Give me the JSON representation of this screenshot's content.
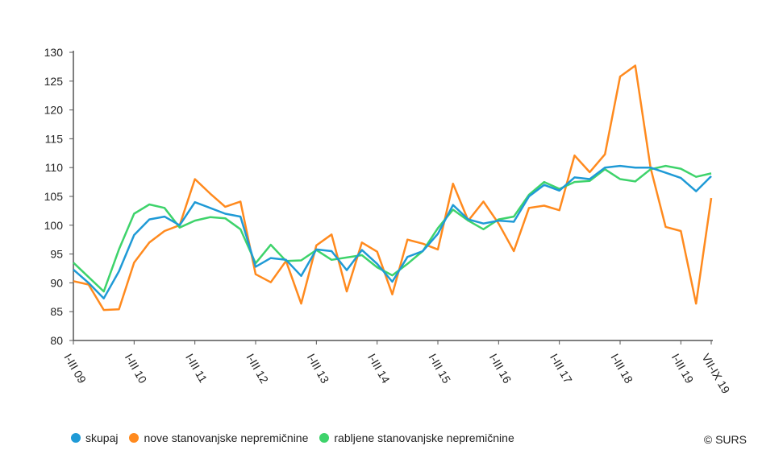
{
  "chart_data": {
    "type": "line",
    "title": "",
    "xlabel": "",
    "ylabel": "",
    "ylim": [
      80,
      130
    ],
    "yticks": [
      80,
      85,
      90,
      95,
      100,
      105,
      110,
      115,
      120,
      125,
      130
    ],
    "grid": false,
    "legend_position": "bottom",
    "x_tick_labels": [
      {
        "index": 0,
        "label": "I-III 09"
      },
      {
        "index": 4,
        "label": "I-III 10"
      },
      {
        "index": 8,
        "label": "I-III 11"
      },
      {
        "index": 12,
        "label": "I-III 12"
      },
      {
        "index": 16,
        "label": "I-III 13"
      },
      {
        "index": 20,
        "label": "I-III 14"
      },
      {
        "index": 24,
        "label": "I-III 15"
      },
      {
        "index": 28,
        "label": "I-III 16"
      },
      {
        "index": 32,
        "label": "I-III 17"
      },
      {
        "index": 36,
        "label": "I-III 18"
      },
      {
        "index": 40,
        "label": "I-III 19"
      },
      {
        "index": 42,
        "label": "VII-IX 19"
      }
    ],
    "series": [
      {
        "name": "skupaj",
        "color": "#1f9ad6",
        "values": [
          92.3,
          90,
          87.3,
          92,
          98.3,
          101,
          101.5,
          100,
          104,
          103,
          102,
          101.5,
          92.8,
          94.3,
          94,
          91.2,
          95.8,
          95.5,
          92.2,
          95.7,
          93.3,
          90.2,
          94.5,
          95.5,
          98.5,
          103.5,
          101,
          100.3,
          100.8,
          100.6,
          105,
          107,
          106,
          108.3,
          108,
          110,
          110.3,
          110,
          110,
          109.1,
          108.2,
          105.9,
          108.5
        ]
      },
      {
        "name": "nove stanovanjske nepremičnine",
        "color": "#ff8a1e",
        "values": [
          90.3,
          89.7,
          85.3,
          85.4,
          93.5,
          97,
          99,
          100,
          108,
          105.5,
          103.2,
          104.1,
          91.5,
          90.1,
          93.8,
          86.4,
          96.5,
          98.4,
          88.5,
          97,
          95.4,
          88,
          97.5,
          96.8,
          95.8,
          107.2,
          100.8,
          104.1,
          100.3,
          95.5,
          103,
          103.4,
          102.6,
          112.1,
          109.2,
          112.3,
          125.8,
          127.7,
          110,
          99.7,
          99,
          86.4,
          104.7
        ]
      },
      {
        "name": "rabljene stanovanjske nepremičnine",
        "color": "#3ed36b",
        "values": [
          93.5,
          91,
          88.5,
          95.8,
          102,
          103.6,
          103,
          99.6,
          100.8,
          101.4,
          101.2,
          99.3,
          93.4,
          96.6,
          93.8,
          93.9,
          95.7,
          94,
          94.4,
          94.8,
          92.7,
          91.3,
          93.3,
          95.5,
          99.5,
          102.7,
          100.8,
          99.3,
          101,
          101.5,
          105.3,
          107.5,
          106.3,
          107.5,
          107.7,
          109.7,
          108,
          107.6,
          109.7,
          110.3,
          109.8,
          108.4,
          109
        ]
      }
    ]
  },
  "credit": "© SURS"
}
